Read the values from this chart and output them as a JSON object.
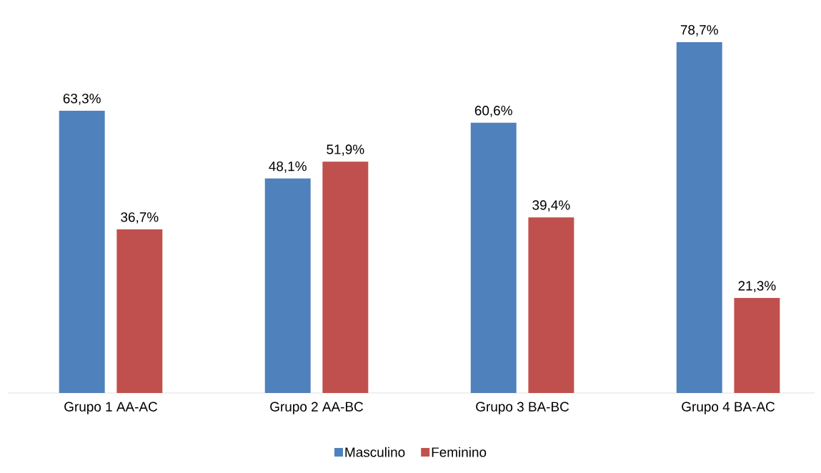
{
  "chart_data": {
    "type": "bar",
    "categories": [
      "Grupo 1 AA-AC",
      "Grupo 2 AA-BC",
      "Grupo 3 BA-BC",
      "Grupo 4 BA-AC"
    ],
    "series": [
      {
        "name": "Masculino",
        "color": "#4f81bd",
        "values": [
          63.3,
          48.1,
          60.6,
          78.7
        ],
        "value_labels": [
          "63,3%",
          "48,1%",
          "60,6%",
          "78,7%"
        ]
      },
      {
        "name": "Feminino",
        "color": "#c0504d",
        "values": [
          36.7,
          51.9,
          39.4,
          21.3
        ],
        "value_labels": [
          "36,7%",
          "51,9%",
          "39,4%",
          "21,3%"
        ]
      }
    ],
    "legend": "bottom"
  }
}
